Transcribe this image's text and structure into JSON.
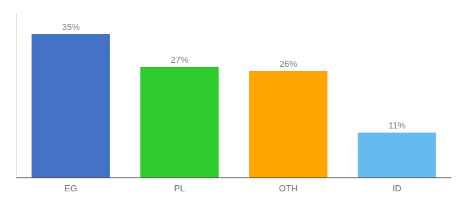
{
  "chart_data": {
    "type": "bar",
    "categories": [
      "EG",
      "PL",
      "OTH",
      "ID"
    ],
    "values": [
      35,
      27,
      26,
      11
    ],
    "value_labels": [
      "35%",
      "27%",
      "26%",
      "11%"
    ],
    "colors": [
      "#4472C4",
      "#2ECC2E",
      "#FFA500",
      "#66BBEE"
    ],
    "ylim": [
      0,
      40
    ],
    "grid": false,
    "data_labels": true,
    "tick_labels": "x"
  }
}
